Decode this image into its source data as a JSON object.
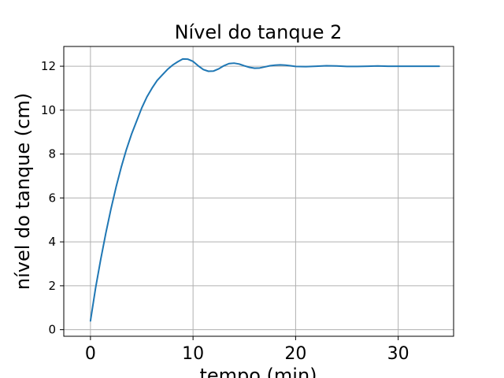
{
  "chart_data": {
    "type": "line",
    "title": "Nível do tanque 2",
    "xlabel": "tempo (min)",
    "ylabel": "nível do tanque (cm)",
    "xlim": [
      -2.6,
      35.4
    ],
    "ylim": [
      -0.3,
      12.9
    ],
    "xticks": [
      0,
      10,
      20,
      30
    ],
    "xtick_labels": [
      "0",
      "10",
      "20",
      "30"
    ],
    "yticks": [
      0,
      2,
      4,
      6,
      8,
      10,
      12
    ],
    "ytick_labels": [
      "0",
      "2",
      "4",
      "6",
      "8",
      "10",
      "12"
    ],
    "grid": true,
    "colors": {
      "series": "#1f77b4",
      "grid": "#b0b0b0"
    },
    "series": [
      {
        "x": [
          0,
          0.5,
          1,
          1.5,
          2,
          2.5,
          3,
          3.5,
          4,
          4.5,
          5,
          5.5,
          6,
          6.5,
          7,
          7.5,
          8,
          8.5,
          9,
          9.5,
          10,
          10.5,
          11,
          11.5,
          12,
          12.5,
          13,
          13.5,
          14,
          14.5,
          15,
          15.5,
          16,
          16.5,
          17,
          17.5,
          18,
          18.5,
          19,
          19.5,
          20,
          21,
          22,
          23,
          24,
          25,
          26,
          27,
          28,
          29,
          30,
          31,
          32,
          33,
          34
        ],
        "y": [
          0.4,
          1.9,
          3.2,
          4.4,
          5.5,
          6.5,
          7.4,
          8.2,
          8.9,
          9.5,
          10.1,
          10.6,
          11.0,
          11.35,
          11.6,
          11.85,
          12.05,
          12.2,
          12.33,
          12.32,
          12.22,
          12.02,
          11.85,
          11.77,
          11.78,
          11.88,
          12.02,
          12.12,
          12.14,
          12.1,
          12.02,
          11.95,
          11.91,
          11.92,
          11.97,
          12.02,
          12.05,
          12.06,
          12.05,
          12.02,
          11.99,
          11.98,
          12.0,
          12.02,
          12.01,
          11.99,
          11.99,
          12.0,
          12.01,
          12.0,
          12.0,
          12.0,
          12.0,
          12.0,
          12.0
        ]
      }
    ]
  }
}
